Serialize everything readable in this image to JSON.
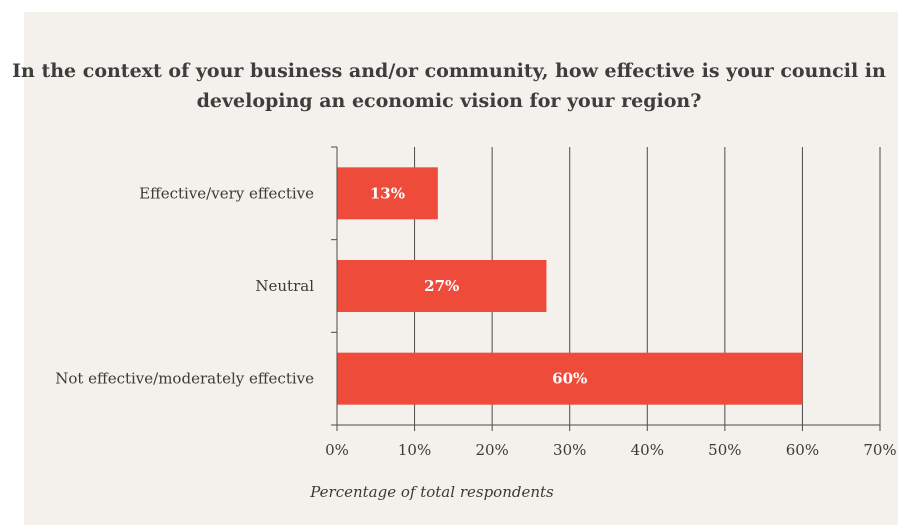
{
  "chart_data": {
    "type": "bar",
    "orientation": "horizontal",
    "title_lines": [
      "In the context of your business and/or community, how effective is your council in",
      "developing an economic vision for your region?"
    ],
    "categories": [
      "Effective/very effective",
      "Neutral",
      "Not effective/moderately effective"
    ],
    "values": [
      13,
      27,
      60
    ],
    "data_labels": [
      "13%",
      "27%",
      "60%"
    ],
    "xlabel": "Percentage of total respondents",
    "xlim": [
      0,
      70
    ],
    "xticks": [
      0,
      10,
      20,
      30,
      40,
      50,
      60,
      70
    ],
    "xtick_labels": [
      "0%",
      "10%",
      "20%",
      "30%",
      "40%",
      "50%",
      "60%",
      "70%"
    ],
    "grid": "vertical",
    "bar_color": "#ee4b3a",
    "background_color": "#f4f1ec"
  }
}
